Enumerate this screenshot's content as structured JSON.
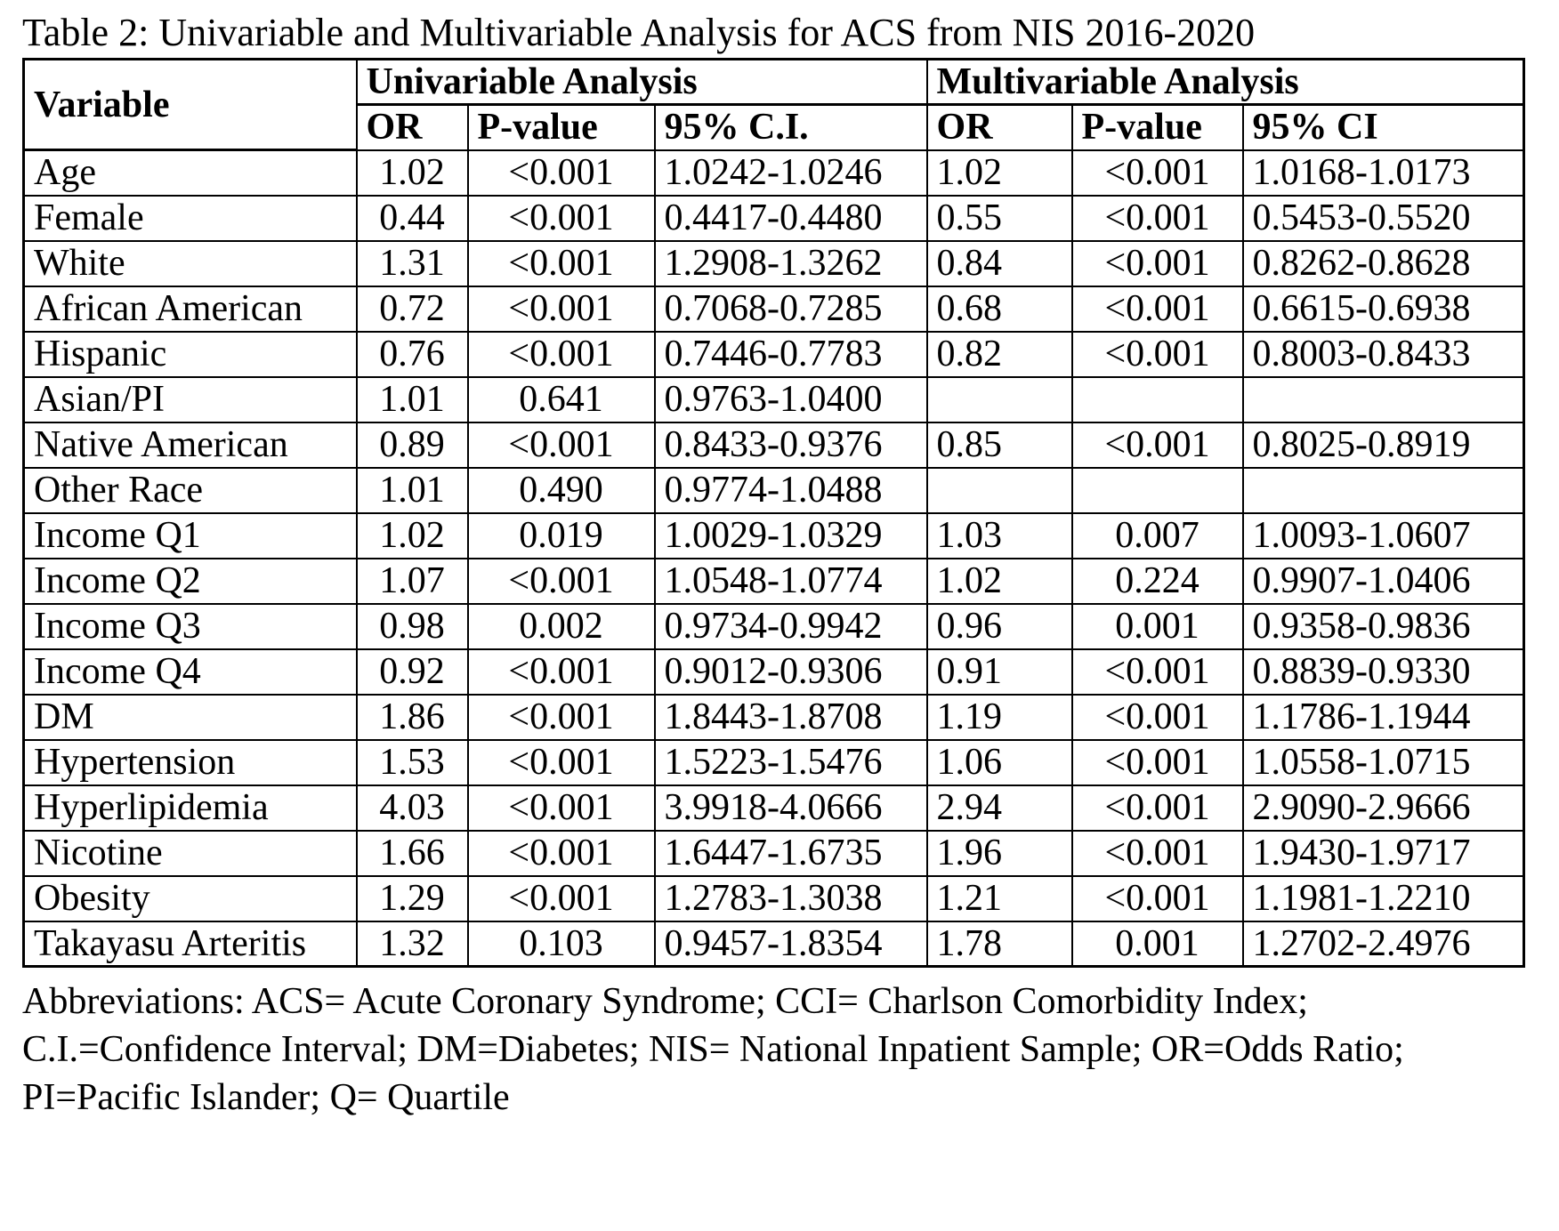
{
  "title": "Table 2: Univariable and Multivariable Analysis for ACS from NIS 2016-2020",
  "table": {
    "variable_header": "Variable",
    "group_headers": [
      "Univariable Analysis",
      "Multivariable  Analysis"
    ],
    "sub_headers": [
      "OR",
      "P-value",
      "95% C.I.",
      "OR",
      "P-value",
      "95% CI"
    ],
    "rows": [
      [
        "Age",
        "1.02",
        "<0.001",
        "1.0242-1.0246",
        "1.02",
        "<0.001",
        "1.0168-1.0173"
      ],
      [
        "Female",
        "0.44",
        "<0.001",
        "0.4417-0.4480",
        "0.55",
        "<0.001",
        "0.5453-0.5520"
      ],
      [
        "White",
        "1.31",
        "<0.001",
        "1.2908-1.3262",
        "0.84",
        "<0.001",
        "0.8262-0.8628"
      ],
      [
        "African American",
        "0.72",
        "<0.001",
        "0.7068-0.7285",
        "0.68",
        "<0.001",
        "0.6615-0.6938"
      ],
      [
        "Hispanic",
        "0.76",
        "<0.001",
        "0.7446-0.7783",
        "0.82",
        "<0.001",
        "0.8003-0.8433"
      ],
      [
        "Asian/PI",
        "1.01",
        "0.641",
        "0.9763-1.0400",
        "",
        "",
        ""
      ],
      [
        "Native American",
        "0.89",
        "<0.001",
        "0.8433-0.9376",
        "0.85",
        "<0.001",
        "0.8025-0.8919"
      ],
      [
        "Other Race",
        "1.01",
        "0.490",
        "0.9774-1.0488",
        "",
        "",
        ""
      ],
      [
        "Income Q1",
        "1.02",
        "0.019",
        "1.0029-1.0329",
        "1.03",
        "0.007",
        "1.0093-1.0607"
      ],
      [
        "Income Q2",
        "1.07",
        "<0.001",
        "1.0548-1.0774",
        "1.02",
        "0.224",
        "0.9907-1.0406"
      ],
      [
        "Income Q3",
        "0.98",
        "0.002",
        "0.9734-0.9942",
        "0.96",
        "0.001",
        "0.9358-0.9836"
      ],
      [
        "Income Q4",
        "0.92",
        "<0.001",
        "0.9012-0.9306",
        "0.91",
        "<0.001",
        "0.8839-0.9330"
      ],
      [
        "DM",
        "1.86",
        "<0.001",
        "1.8443-1.8708",
        "1.19",
        "<0.001",
        "1.1786-1.1944"
      ],
      [
        "Hypertension",
        "1.53",
        "<0.001",
        "1.5223-1.5476",
        "1.06",
        "<0.001",
        "1.0558-1.0715"
      ],
      [
        "Hyperlipidemia",
        "4.03",
        "<0.001",
        "3.9918-4.0666",
        "2.94",
        "<0.001",
        "2.9090-2.9666"
      ],
      [
        "Nicotine",
        "1.66",
        "<0.001",
        "1.6447-1.6735",
        "1.96",
        "<0.001",
        "1.9430-1.9717"
      ],
      [
        "Obesity",
        "1.29",
        "<0.001",
        "1.2783-1.3038",
        "1.21",
        "<0.001",
        "1.1981-1.2210"
      ],
      [
        "Takayasu Arteritis",
        "1.32",
        "0.103",
        "0.9457-1.8354",
        "1.78",
        "0.001",
        "1.2702-2.4976"
      ]
    ]
  },
  "footnote": {
    "lines": [
      "Abbreviations: ACS= Acute Coronary Syndrome; CCI= Charlson Comorbidity Index;",
      "C.I.=Confidence Interval; DM=Diabetes; NIS= National Inpatient Sample; OR=Odds Ratio;",
      "PI=Pacific Islander; Q= Quartile"
    ]
  }
}
